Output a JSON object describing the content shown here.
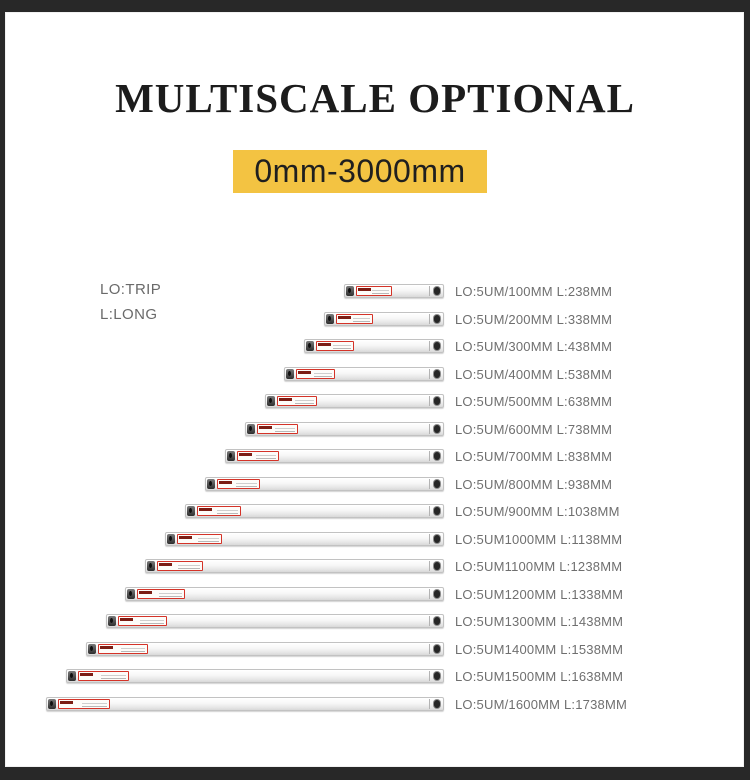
{
  "header": {
    "title": "MULTISCALE OPTIONAL"
  },
  "range_badge": {
    "text": "0mm-3000mm",
    "bg_color": "#f3c342",
    "text_color": "#1f1f1f"
  },
  "legend": {
    "trip": "LO:TRIP",
    "long": "L:LONG"
  },
  "colors": {
    "frame": "#282828",
    "background": "#ffffff",
    "title_text": "#1c1c1c",
    "label_text": "#6f6f6f",
    "sticker_border": "#d43328"
  },
  "scales": {
    "rows": [
      {
        "label": "LO:5UM/100MM L:238MM",
        "travel_mm": 100,
        "length_mm": 238
      },
      {
        "label": "LO:5UM/200MM L:338MM",
        "travel_mm": 200,
        "length_mm": 338
      },
      {
        "label": "LO:5UM/300MM L:438MM",
        "travel_mm": 300,
        "length_mm": 438
      },
      {
        "label": "LO:5UM/400MM L:538MM",
        "travel_mm": 400,
        "length_mm": 538
      },
      {
        "label": "LO:5UM/500MM L:638MM",
        "travel_mm": 500,
        "length_mm": 638
      },
      {
        "label": "LO:5UM/600MM L:738MM",
        "travel_mm": 600,
        "length_mm": 738
      },
      {
        "label": "LO:5UM/700MM L:838MM",
        "travel_mm": 700,
        "length_mm": 838
      },
      {
        "label": "LO:5UM/800MM L:938MM",
        "travel_mm": 800,
        "length_mm": 938
      },
      {
        "label": "LO:5UM/900MM L:1038MM",
        "travel_mm": 900,
        "length_mm": 1038
      },
      {
        "label": "LO:5UM1000MM L:1138MM",
        "travel_mm": 1000,
        "length_mm": 1138
      },
      {
        "label": "LO:5UM1100MM L:1238MM",
        "travel_mm": 1100,
        "length_mm": 1238
      },
      {
        "label": "LO:5UM1200MM L:1338MM",
        "travel_mm": 1200,
        "length_mm": 1338
      },
      {
        "label": "LO:5UM1300MM L:1438MM",
        "travel_mm": 1300,
        "length_mm": 1438
      },
      {
        "label": "LO:5UM1400MM L:1538MM",
        "travel_mm": 1400,
        "length_mm": 1538
      },
      {
        "label": "LO:5UM1500MM L:1638MM",
        "travel_mm": 1500,
        "length_mm": 1638
      },
      {
        "label": "LO:5UM/1600MM L:1738MM",
        "travel_mm": 1600,
        "length_mm": 1738
      }
    ]
  }
}
